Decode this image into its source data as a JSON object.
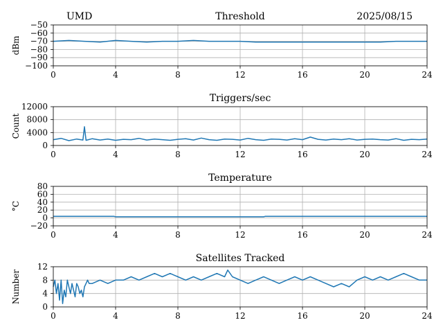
{
  "header": {
    "site": "UMD",
    "date": "2025/08/15"
  },
  "colors": {
    "series": "#1f77b4",
    "grid": "#b0b0b0",
    "axis": "#000000"
  },
  "chart_data": [
    {
      "type": "line",
      "title": "Threshold",
      "ylabel": "dBm",
      "xlabel": "",
      "xlim": [
        0,
        24
      ],
      "ylim": [
        -100,
        -50
      ],
      "xticks": [
        0,
        4,
        8,
        12,
        16,
        20,
        24
      ],
      "yticks": [
        -100,
        -90,
        -80,
        -70,
        -60,
        -50
      ],
      "grid": true,
      "series": [
        {
          "x": [
            0,
            1,
            2,
            3,
            4,
            5,
            6,
            7,
            8,
            9,
            10,
            11,
            12,
            13,
            14,
            15,
            16,
            17,
            18,
            19,
            20,
            21,
            22,
            23,
            24
          ],
          "values": [
            -70,
            -69,
            -70,
            -71,
            -69,
            -70,
            -71,
            -70,
            -70,
            -69,
            -70,
            -70,
            -70,
            -71,
            -71,
            -71,
            -71,
            -71,
            -71,
            -71,
            -71,
            -71,
            -70,
            -70,
            -70
          ]
        }
      ]
    },
    {
      "type": "line",
      "title": "Triggers/sec",
      "ylabel": "Count",
      "xlabel": "",
      "xlim": [
        0,
        24
      ],
      "ylim": [
        0,
        12000
      ],
      "xticks": [
        0,
        4,
        8,
        12,
        16,
        20,
        24
      ],
      "yticks": [
        0,
        4000,
        8000,
        12000
      ],
      "grid": true,
      "series": [
        {
          "x": [
            0,
            0.5,
            1,
            1.5,
            1.9,
            2,
            2.1,
            2.5,
            3,
            3.5,
            4,
            4.5,
            5,
            5.5,
            6,
            6.5,
            7,
            7.5,
            8,
            8.5,
            9,
            9.5,
            10,
            10.5,
            11,
            11.5,
            12,
            12.5,
            13,
            13.5,
            14,
            14.5,
            15,
            15.5,
            16,
            16.5,
            17,
            17.5,
            18,
            18.5,
            19,
            19.5,
            20,
            20.5,
            21,
            21.5,
            22,
            22.5,
            23,
            23.5,
            24
          ],
          "values": [
            1800,
            2200,
            1500,
            2000,
            1700,
            5800,
            1600,
            2100,
            1700,
            2000,
            1600,
            1900,
            1800,
            2200,
            1700,
            2000,
            1800,
            1600,
            1900,
            2100,
            1700,
            2300,
            1800,
            1600,
            2000,
            1900,
            1700,
            2200,
            1800,
            1600,
            2000,
            1900,
            1700,
            2100,
            1800,
            2600,
            1900,
            1700,
            2000,
            1800,
            2100,
            1700,
            1900,
            2000,
            1800,
            1700,
            2100,
            1600,
            1900,
            1800,
            2000
          ]
        }
      ]
    },
    {
      "type": "line",
      "title": "Temperature",
      "ylabel": "°C",
      "xlabel": "",
      "xlim": [
        0,
        24
      ],
      "ylim": [
        -20,
        80
      ],
      "xticks": [
        0,
        4,
        8,
        12,
        16,
        20,
        24
      ],
      "yticks": [
        -20,
        0,
        20,
        40,
        60,
        80
      ],
      "grid": true,
      "series": [
        {
          "x": [
            0,
            3.9,
            4,
            13.5,
            13.6,
            24
          ],
          "values": [
            4,
            4,
            3,
            3,
            4,
            4
          ]
        }
      ]
    },
    {
      "type": "line",
      "title": "Satellites Tracked",
      "ylabel": "Number",
      "xlabel": "",
      "xlim": [
        0,
        24
      ],
      "ylim": [
        0,
        12
      ],
      "xticks": [
        0,
        4,
        8,
        12,
        16,
        20,
        24
      ],
      "yticks": [
        0,
        4,
        8,
        12
      ],
      "grid": true,
      "series": [
        {
          "x": [
            0,
            0.1,
            0.2,
            0.3,
            0.4,
            0.5,
            0.6,
            0.7,
            0.8,
            0.9,
            1.0,
            1.1,
            1.2,
            1.3,
            1.4,
            1.5,
            1.6,
            1.7,
            1.8,
            1.9,
            2.0,
            2.1,
            2.2,
            2.3,
            2.5,
            3.0,
            3.5,
            4.0,
            4.5,
            5.0,
            5.5,
            6.0,
            6.5,
            7.0,
            7.5,
            8.0,
            8.5,
            9.0,
            9.5,
            10.0,
            10.5,
            11.0,
            11.2,
            11.5,
            12.0,
            12.5,
            13.0,
            13.5,
            14.0,
            14.5,
            15.0,
            15.5,
            16.0,
            16.5,
            17.0,
            17.5,
            18.0,
            18.5,
            19.0,
            19.5,
            20.0,
            20.5,
            21.0,
            21.5,
            22.0,
            22.5,
            23.0,
            23.5,
            24.0
          ],
          "values": [
            6,
            8,
            4,
            7,
            2,
            8,
            1,
            5,
            3,
            8,
            6,
            4,
            7,
            5,
            3,
            7,
            6,
            4,
            5,
            3,
            6,
            7,
            8,
            7,
            7,
            8,
            7,
            8,
            8,
            9,
            8,
            9,
            10,
            9,
            10,
            9,
            8,
            9,
            8,
            9,
            10,
            9,
            11,
            9,
            8,
            7,
            8,
            9,
            8,
            7,
            8,
            9,
            8,
            9,
            8,
            7,
            6,
            7,
            6,
            8,
            9,
            8,
            9,
            8,
            9,
            10,
            9,
            8,
            8
          ]
        }
      ]
    }
  ]
}
